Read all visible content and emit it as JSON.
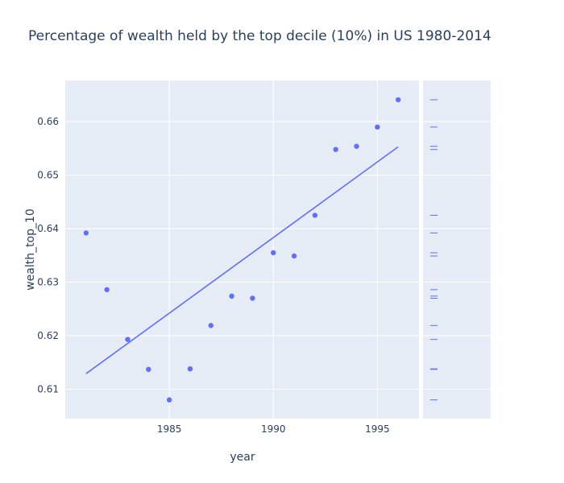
{
  "chart_data": {
    "type": "scatter",
    "title": "Percentage of wealth held by the top decile (10%) in US 1980-2014",
    "xlabel": "year",
    "ylabel": "wealth_top_10",
    "xlim": [
      1980,
      1997
    ],
    "ylim": [
      0.6045,
      0.6677
    ],
    "x_ticks": [
      1985,
      1990,
      1995
    ],
    "y_ticks": [
      0.61,
      0.62,
      0.63,
      0.64,
      0.65,
      0.66
    ],
    "grid": true,
    "marginal": "rug",
    "series": [
      {
        "mode": "markers",
        "x": [
          1981,
          1982,
          1983,
          1984,
          1985,
          1986,
          1987,
          1988,
          1989,
          1990,
          1991,
          1992,
          1993,
          1994,
          1995,
          1996
        ],
        "y": [
          0.6392,
          0.6286,
          0.6193,
          0.6137,
          0.608,
          0.6138,
          0.6219,
          0.6274,
          0.627,
          0.6355,
          0.6349,
          0.6425,
          0.6548,
          0.6554,
          0.659,
          0.6641
        ]
      },
      {
        "mode": "lines",
        "x": [
          1981,
          1996
        ],
        "y": [
          0.6129,
          0.6553
        ]
      }
    ],
    "colors": {
      "marker": "#636efa",
      "plot_bg": "#e5ecf6",
      "grid": "#ffffff",
      "text": "#2a3f5f"
    }
  }
}
